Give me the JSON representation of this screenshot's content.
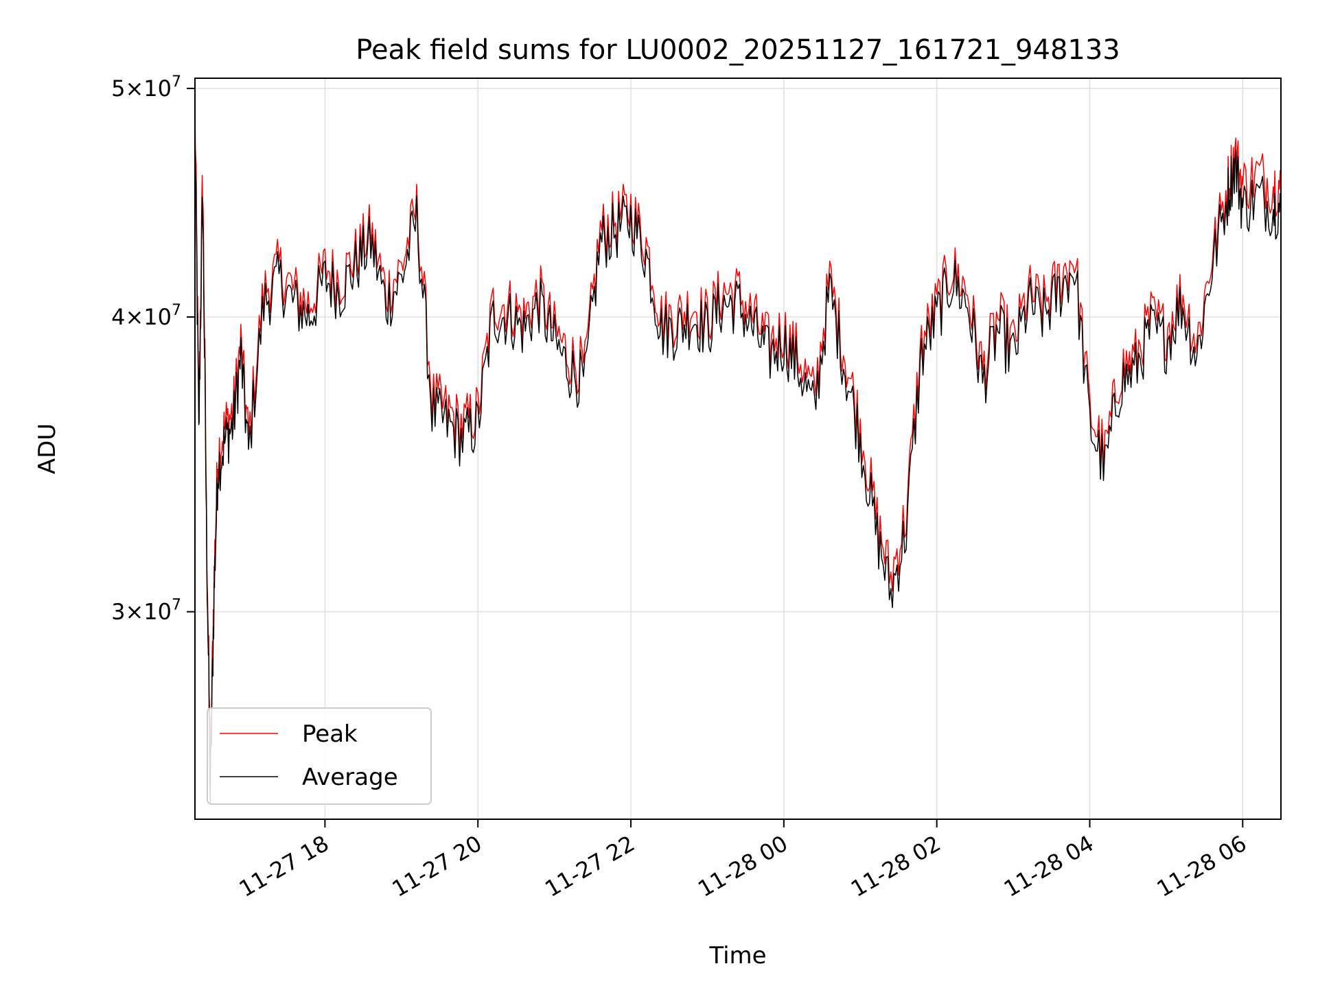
{
  "chart_data": {
    "type": "line",
    "title": "Peak field sums for LU0002_20251127_161721_948133",
    "xlabel": "Time",
    "ylabel": "ADU",
    "yscale": "log",
    "ylim": [
      24500000,
      50500000
    ],
    "xlim": [
      16.3,
      30.5
    ],
    "grid": true,
    "legend_position": "lower-left",
    "x_ticks": [
      {
        "value": 18,
        "label": "11-27 18"
      },
      {
        "value": 20,
        "label": "11-27 20"
      },
      {
        "value": 22,
        "label": "11-27 22"
      },
      {
        "value": 24,
        "label": "11-28 00"
      },
      {
        "value": 26,
        "label": "11-28 02"
      },
      {
        "value": 28,
        "label": "11-28 04"
      },
      {
        "value": 30,
        "label": "11-28 06"
      }
    ],
    "y_ticks": [
      {
        "value": 30000000,
        "base": "3",
        "exp": "7"
      },
      {
        "value": 40000000,
        "base": "4",
        "exp": "7"
      },
      {
        "value": 50000000,
        "base": "5",
        "exp": "7"
      }
    ],
    "x": [
      16.3,
      16.35,
      16.4,
      16.45,
      16.5,
      16.55,
      16.6,
      16.7,
      16.8,
      16.9,
      17.0,
      17.2,
      17.4,
      17.6,
      17.8,
      18.0,
      18.2,
      18.4,
      18.6,
      18.8,
      19.0,
      19.2,
      19.4,
      19.6,
      19.8,
      20.0,
      20.2,
      20.4,
      20.6,
      20.8,
      21.0,
      21.2,
      21.4,
      21.6,
      21.8,
      22.0,
      22.2,
      22.4,
      22.6,
      22.8,
      23.0,
      23.2,
      23.4,
      23.6,
      23.8,
      24.0,
      24.2,
      24.4,
      24.6,
      24.8,
      25.0,
      25.2,
      25.4,
      25.6,
      25.8,
      26.0,
      26.2,
      26.4,
      26.6,
      26.8,
      27.0,
      27.2,
      27.4,
      27.6,
      27.8,
      28.0,
      28.2,
      28.4,
      28.6,
      28.8,
      29.0,
      29.2,
      29.4,
      29.6,
      29.8,
      29.9,
      30.0,
      30.2,
      30.4,
      30.5
    ],
    "series": [
      {
        "name": "Peak",
        "color": "#ff0000",
        "values": [
          49000000,
          36000000,
          46000000,
          33000000,
          25500000,
          31000000,
          35000000,
          36000000,
          36500000,
          39000000,
          35500000,
          41000000,
          42000000,
          41000000,
          40500000,
          42000000,
          41500000,
          42500000,
          43500000,
          41000000,
          42000000,
          44500000,
          37000000,
          36500000,
          36000000,
          36500000,
          40500000,
          40500000,
          40000000,
          41000000,
          39500000,
          38500000,
          38000000,
          43500000,
          44000000,
          44500000,
          43000000,
          40000000,
          40000000,
          40500000,
          40000000,
          41000000,
          41000000,
          40000000,
          39000000,
          39500000,
          38500000,
          37000000,
          41500000,
          38500000,
          36000000,
          33000000,
          31000000,
          33000000,
          39000000,
          40500000,
          42000000,
          41000000,
          38000000,
          40000000,
          39000000,
          41000000,
          40500000,
          41500000,
          42500000,
          36500000,
          35000000,
          38000000,
          38500000,
          40000000,
          39500000,
          41000000,
          39000000,
          42500000,
          45500000,
          47000000,
          45500000,
          46000000,
          45500000,
          45500000
        ]
      },
      {
        "name": "Average",
        "color": "#000000",
        "values": [
          48000000,
          35500000,
          45000000,
          32500000,
          25000000,
          30500000,
          34500000,
          35500000,
          36000000,
          38500000,
          35000000,
          40500000,
          41500000,
          40500000,
          40000000,
          41500000,
          41000000,
          42000000,
          43000000,
          40500000,
          41500000,
          44000000,
          36500000,
          36000000,
          35500000,
          36000000,
          40000000,
          40000000,
          39500000,
          40500000,
          39000000,
          38000000,
          37500000,
          43000000,
          43500000,
          44000000,
          42500000,
          39500000,
          39500000,
          40000000,
          39500000,
          40500000,
          40500000,
          39500000,
          38500000,
          39000000,
          38000000,
          36500000,
          41000000,
          38000000,
          35500000,
          32500000,
          30500000,
          32500000,
          38500000,
          40000000,
          41500000,
          40500000,
          37500000,
          39500000,
          38500000,
          40500000,
          40000000,
          41000000,
          42000000,
          36000000,
          34500000,
          37500000,
          38000000,
          39500000,
          39000000,
          40500000,
          38500000,
          42000000,
          45000000,
          46500000,
          44500000,
          45000000,
          44500000,
          44500000
        ]
      }
    ]
  }
}
